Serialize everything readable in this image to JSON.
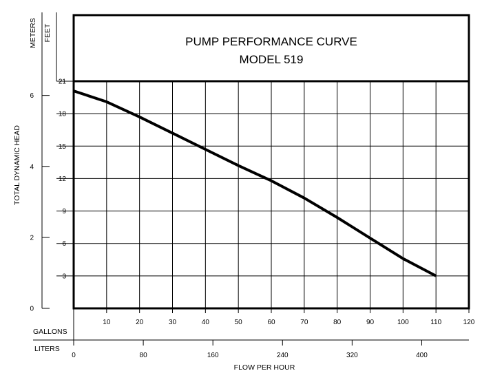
{
  "chart_data": {
    "type": "line",
    "title": "PUMP PERFORMANCE CURVE",
    "subtitle": "MODEL 519",
    "ylabel": "TOTAL DYNAMIC HEAD",
    "xlabel": "FLOW PER HOUR",
    "y_unit_meters": "METERS",
    "y_unit_feet": "FEET",
    "x_unit_gallons": "GALLONS",
    "x_unit_liters": "LITERS",
    "xlim": [
      0,
      120
    ],
    "ylim_feet": [
      0,
      21
    ],
    "ylim_meters": [
      0,
      6.4
    ],
    "grid": true,
    "x_ticks_gallons": [
      10,
      20,
      30,
      40,
      50,
      60,
      70,
      80,
      90,
      100,
      110,
      120
    ],
    "x_ticks_liters": [
      0,
      80,
      160,
      240,
      320,
      400
    ],
    "y_ticks_feet": [
      3,
      6,
      9,
      12,
      15,
      18,
      21
    ],
    "y_ticks_meters": [
      0,
      2,
      4,
      6
    ],
    "series": [
      {
        "x": [
          0,
          10,
          20,
          30,
          40,
          50,
          60,
          70,
          80,
          90,
          100,
          110
        ],
        "y": [
          20.1,
          19.1,
          17.7,
          16.2,
          14.7,
          13.2,
          11.8,
          10.2,
          8.4,
          6.5,
          4.6,
          3.0
        ]
      }
    ]
  }
}
